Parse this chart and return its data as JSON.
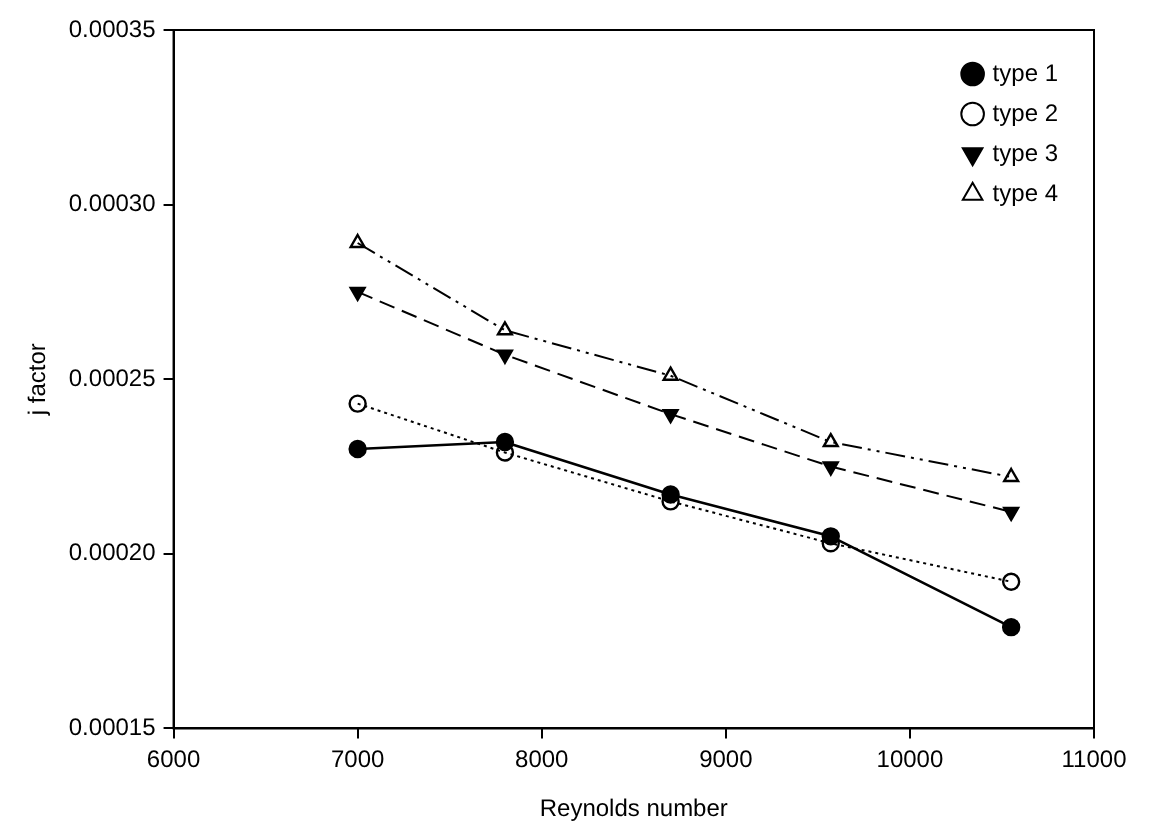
{
  "chart_data": {
    "type": "line",
    "xlabel": "Reynolds number",
    "ylabel": "j factor",
    "x": [
      7000,
      7800,
      8700,
      9570,
      10550
    ],
    "series": [
      {
        "name": "type 1",
        "color": "#000000",
        "marker": "circle",
        "line_style": "solid",
        "values": [
          0.00023,
          0.000232,
          0.000217,
          0.000205,
          0.000179
        ]
      },
      {
        "name": "type 2",
        "color": "#000000",
        "marker": "circle-open",
        "line_style": "dotted",
        "values": [
          0.000243,
          0.000229,
          0.000215,
          0.000203,
          0.000192
        ]
      },
      {
        "name": "type 3",
        "color": "#000000",
        "marker": "triangle-down",
        "line_style": "dashed",
        "values": [
          0.000275,
          0.000257,
          0.00024,
          0.000225,
          0.000212
        ]
      },
      {
        "name": "type 4",
        "color": "#000000",
        "marker": "triangle-open",
        "line_style": "dashdot",
        "values": [
          0.000289,
          0.000264,
          0.000251,
          0.000232,
          0.000222
        ]
      }
    ],
    "xlim": [
      6000,
      11000
    ],
    "xticks": [
      6000,
      7000,
      8000,
      9000,
      10000,
      11000
    ],
    "ylim": [
      0.00015,
      0.00035
    ],
    "yticks": [
      {
        "value": 0.00015,
        "label": "0.00015"
      },
      {
        "value": 0.0002,
        "label": "0.00020"
      },
      {
        "value": 0.00025,
        "label": "0.00025"
      },
      {
        "value": 0.0003,
        "label": "0.00030"
      },
      {
        "value": 0.00035,
        "label": "0.00035"
      }
    ],
    "grid": false,
    "legend": "top right"
  }
}
